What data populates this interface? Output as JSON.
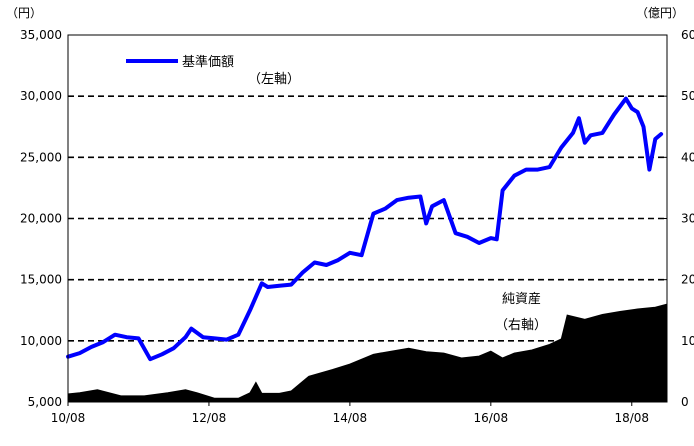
{
  "chart_data": {
    "type": "line",
    "left_axis": {
      "unit": "（円）",
      "min": 5000,
      "max": 35000,
      "step": 5000,
      "tick_labels": [
        "5,000",
        "10,000",
        "15,000",
        "20,000",
        "25,000",
        "30,000",
        "35,000"
      ]
    },
    "right_axis": {
      "unit": "（億円）",
      "min": 0,
      "max": 60,
      "step": 10,
      "tick_labels": [
        "0",
        "10",
        "20",
        "30",
        "40",
        "50",
        "60"
      ]
    },
    "x_axis": {
      "min": "2010-08",
      "max": "2019-02",
      "tick_labels": [
        "10/08",
        "12/08",
        "14/08",
        "16/08",
        "18/08"
      ],
      "tick_dates": [
        "2010-08",
        "2012-08",
        "2014-08",
        "2016-08",
        "2018-08"
      ]
    },
    "grid": "horizontal dashed",
    "colors": {
      "nav_line": "#0000ff",
      "net_assets_area": "#000000"
    },
    "legend": {
      "label": "基準価額",
      "axis_note": "（左軸）",
      "placement": "top-left"
    },
    "annotation": {
      "label": "純資産",
      "axis_note": "（右軸）"
    },
    "series": [
      {
        "name": "基準価額",
        "axis": "left",
        "style": "line",
        "points": [
          [
            "2010-08",
            8700
          ],
          [
            "2010-10",
            9000
          ],
          [
            "2010-12",
            9500
          ],
          [
            "2011-02",
            9900
          ],
          [
            "2011-04",
            10500
          ],
          [
            "2011-06",
            10300
          ],
          [
            "2011-08",
            10200
          ],
          [
            "2011-10",
            8500
          ],
          [
            "2011-12",
            8900
          ],
          [
            "2012-02",
            9400
          ],
          [
            "2012-04",
            10300
          ],
          [
            "2012-05",
            11000
          ],
          [
            "2012-07",
            10300
          ],
          [
            "2012-09",
            10200
          ],
          [
            "2012-11",
            10100
          ],
          [
            "2013-01",
            10500
          ],
          [
            "2013-03",
            12500
          ],
          [
            "2013-05",
            14700
          ],
          [
            "2013-06",
            14400
          ],
          [
            "2013-08",
            14500
          ],
          [
            "2013-10",
            14600
          ],
          [
            "2013-12",
            15600
          ],
          [
            "2014-02",
            16400
          ],
          [
            "2014-04",
            16200
          ],
          [
            "2014-06",
            16600
          ],
          [
            "2014-08",
            17200
          ],
          [
            "2014-10",
            17000
          ],
          [
            "2014-12",
            20400
          ],
          [
            "2015-02",
            20800
          ],
          [
            "2015-04",
            21500
          ],
          [
            "2015-06",
            21700
          ],
          [
            "2015-08",
            21800
          ],
          [
            "2015-09",
            19600
          ],
          [
            "2015-10",
            21000
          ],
          [
            "2015-12",
            21500
          ],
          [
            "2016-02",
            18800
          ],
          [
            "2016-04",
            18500
          ],
          [
            "2016-06",
            18000
          ],
          [
            "2016-08",
            18400
          ],
          [
            "2016-09",
            18300
          ],
          [
            "2016-10",
            22300
          ],
          [
            "2016-12",
            23500
          ],
          [
            "2017-02",
            24000
          ],
          [
            "2017-04",
            24000
          ],
          [
            "2017-06",
            24200
          ],
          [
            "2017-08",
            25800
          ],
          [
            "2017-10",
            27000
          ],
          [
            "2017-11",
            28200
          ],
          [
            "2017-12",
            26200
          ],
          [
            "2018-01",
            26800
          ],
          [
            "2018-03",
            27000
          ],
          [
            "2018-05",
            28500
          ],
          [
            "2018-07",
            29800
          ],
          [
            "2018-08",
            29000
          ],
          [
            "2018-09",
            28700
          ],
          [
            "2018-10",
            27500
          ],
          [
            "2018-11",
            24000
          ],
          [
            "2018-12",
            26500
          ],
          [
            "2019-01",
            26900
          ]
        ]
      },
      {
        "name": "純資産",
        "axis": "right",
        "style": "area",
        "points": [
          [
            "2010-08",
            1.3
          ],
          [
            "2010-10",
            1.5
          ],
          [
            "2011-01",
            2.0
          ],
          [
            "2011-05",
            1.0
          ],
          [
            "2011-09",
            1.0
          ],
          [
            "2012-01",
            1.5
          ],
          [
            "2012-04",
            2.0
          ],
          [
            "2012-06",
            1.5
          ],
          [
            "2012-09",
            0.6
          ],
          [
            "2013-01",
            0.6
          ],
          [
            "2013-03",
            1.5
          ],
          [
            "2013-04",
            3.2
          ],
          [
            "2013-05",
            1.4
          ],
          [
            "2013-08",
            1.4
          ],
          [
            "2013-10",
            1.8
          ],
          [
            "2014-01",
            4.2
          ],
          [
            "2014-05",
            5.3
          ],
          [
            "2014-08",
            6.2
          ],
          [
            "2014-12",
            7.8
          ],
          [
            "2015-06",
            8.8
          ],
          [
            "2015-09",
            8.2
          ],
          [
            "2015-12",
            8.0
          ],
          [
            "2016-03",
            7.2
          ],
          [
            "2016-06",
            7.5
          ],
          [
            "2016-08",
            8.3
          ],
          [
            "2016-10",
            7.2
          ],
          [
            "2016-12",
            8.0
          ],
          [
            "2017-03",
            8.5
          ],
          [
            "2017-06",
            9.4
          ],
          [
            "2017-08",
            10.3
          ],
          [
            "2017-09",
            14.2
          ],
          [
            "2017-12",
            13.5
          ],
          [
            "2018-03",
            14.3
          ],
          [
            "2018-06",
            14.8
          ],
          [
            "2018-09",
            15.2
          ],
          [
            "2018-12",
            15.5
          ],
          [
            "2019-02",
            16.0
          ]
        ]
      }
    ]
  }
}
